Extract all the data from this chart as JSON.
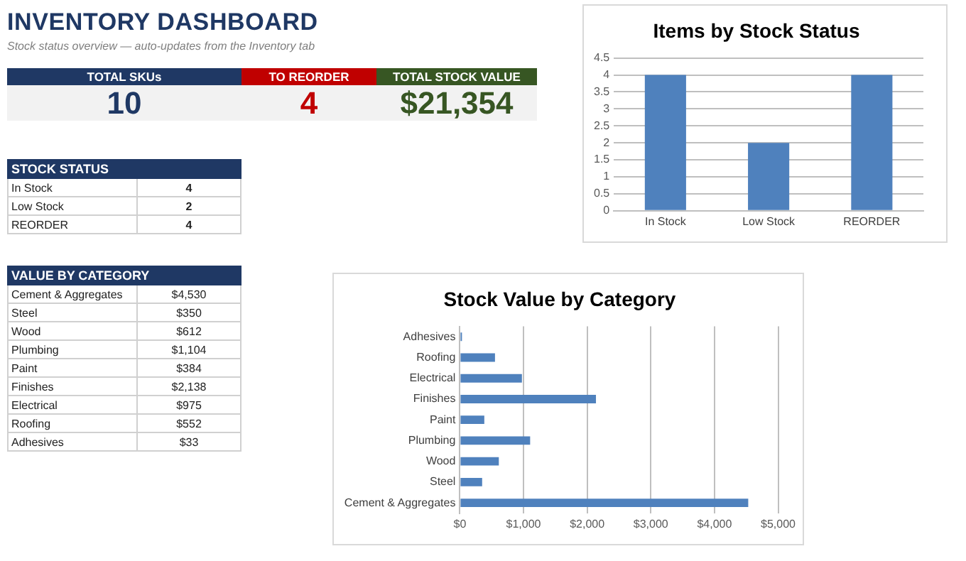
{
  "chart_data": [
    {
      "type": "other",
      "title": "INVENTORY DASHBOARD",
      "subtitle": "Stock status overview — auto-updates from the Inventory tab",
      "categories": [
        "TOTAL SKUs",
        "TO REORDER",
        "TOTAL STOCK VALUE"
      ],
      "values": [
        10,
        4,
        21354
      ],
      "value_labels": [
        "10",
        "4",
        "$21,354"
      ],
      "colors": [
        "#1f3864",
        "#c00000",
        "#375623"
      ]
    },
    {
      "type": "bar",
      "title": "Items by Stock Status",
      "categories": [
        "In Stock",
        "Low Stock",
        "REORDER"
      ],
      "values": [
        4,
        2,
        4
      ],
      "color": "#4f81bd",
      "ylim": [
        0,
        4.5
      ],
      "yticks": [
        0,
        0.5,
        1,
        1.5,
        2,
        2.5,
        3,
        3.5,
        4,
        4.5
      ],
      "grid": "y"
    },
    {
      "type": "other",
      "title": "STOCK STATUS",
      "categories": [
        "In Stock",
        "Low Stock",
        "REORDER"
      ],
      "values": [
        4,
        2,
        4
      ],
      "value_labels": [
        "4",
        "2",
        "4"
      ]
    },
    {
      "type": "other",
      "title": "VALUE BY CATEGORY",
      "categories": [
        "Cement & Aggregates",
        "Steel",
        "Wood",
        "Plumbing",
        "Paint",
        "Finishes",
        "Electrical",
        "Roofing",
        "Adhesives"
      ],
      "values": [
        4530,
        350,
        612,
        1104,
        384,
        2138,
        975,
        552,
        33
      ],
      "value_labels": [
        "$4,530",
        "$350",
        "$612",
        "$1,104",
        "$384",
        "$2,138",
        "$975",
        "$552",
        "$33"
      ]
    },
    {
      "type": "bar",
      "orientation": "horizontal",
      "title": "Stock Value by Category",
      "categories": [
        "Adhesives",
        "Roofing",
        "Electrical",
        "Finishes",
        "Paint",
        "Plumbing",
        "Wood",
        "Steel",
        "Cement & Aggregates"
      ],
      "values": [
        33,
        552,
        975,
        2138,
        384,
        1104,
        612,
        350,
        4530
      ],
      "color": "#4f81bd",
      "xlim": [
        0,
        5000
      ],
      "xticks": [
        {
          "value": 0,
          "label": "$0"
        },
        {
          "value": 1000,
          "label": "$1,000"
        },
        {
          "value": 2000,
          "label": "$2,000"
        },
        {
          "value": 3000,
          "label": "$3,000"
        },
        {
          "value": 4000,
          "label": "$4,000"
        },
        {
          "value": 5000,
          "label": "$5,000"
        }
      ],
      "grid": "x"
    }
  ]
}
